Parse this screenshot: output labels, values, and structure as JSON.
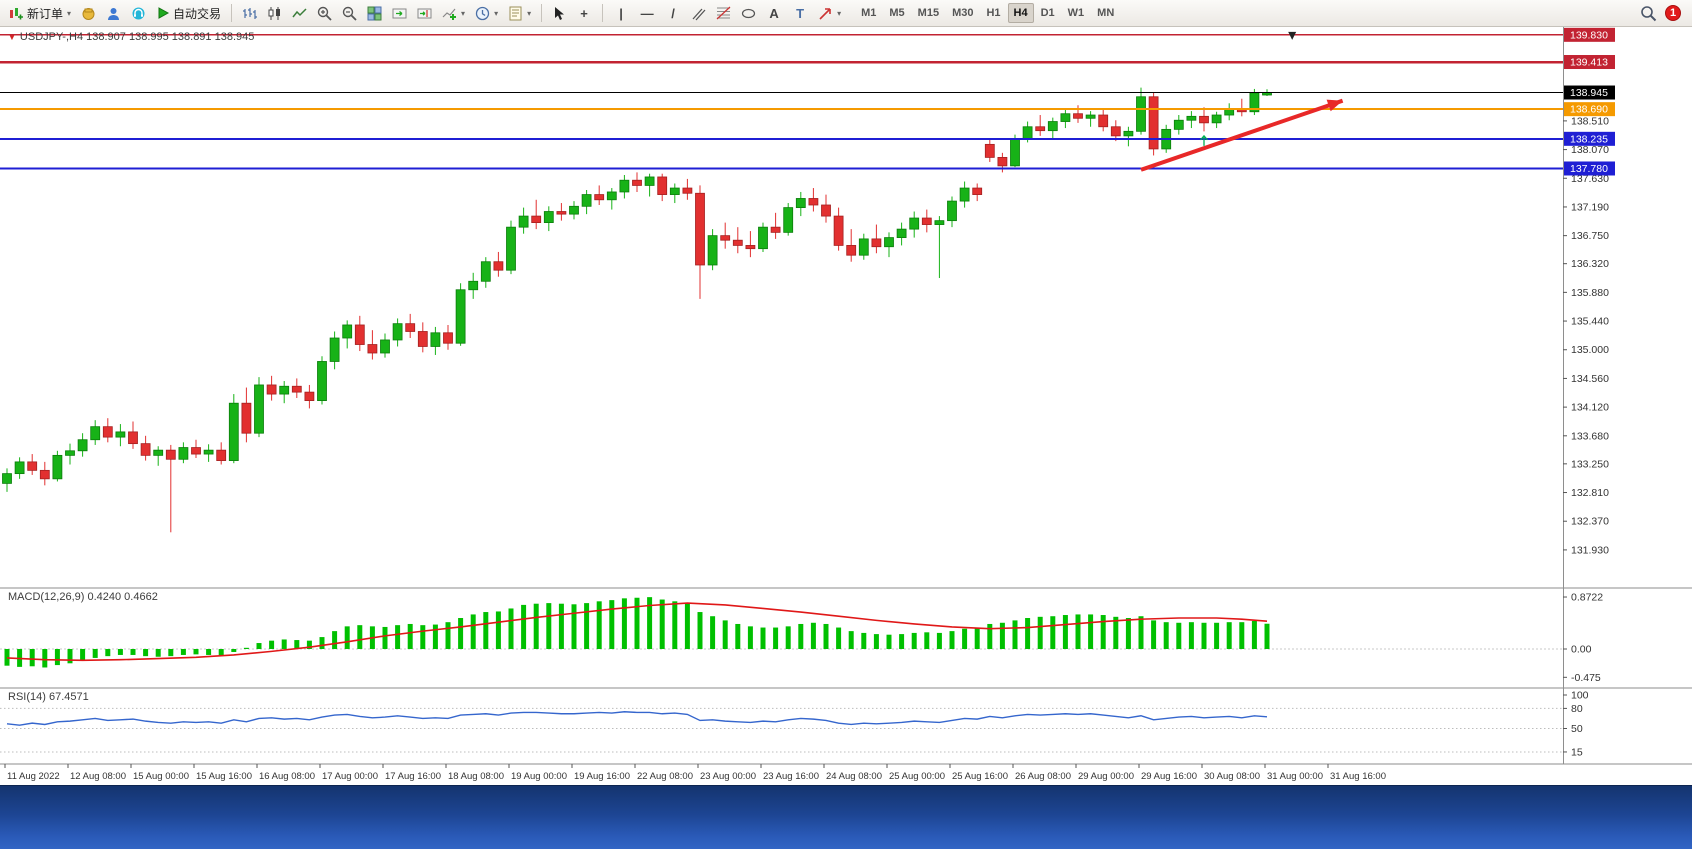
{
  "toolbar": {
    "new_order_label": "新订单",
    "autotrade_label": "自动交易",
    "timeframes": [
      "M1",
      "M5",
      "M15",
      "M30",
      "H1",
      "H4",
      "D1",
      "W1",
      "MN"
    ],
    "active_timeframe": "H4",
    "notification_count": "1",
    "icons": {
      "dropdown": "▾",
      "crosshair": "+",
      "vline": "|",
      "hline": "—",
      "trendline": "/",
      "text": "A",
      "label": "T"
    }
  },
  "chart": {
    "symbol_header": "USDJPY-,H4 138.907 138.995 138.891 138.945",
    "macd_label": "MACD(12,26,9) 0.4240 0.4662",
    "rsi_label": "RSI(14) 67.4571"
  },
  "chart_data": [
    {
      "type": "candlestick",
      "symbol": "USDJPY-",
      "timeframe": "H4",
      "open": 138.907,
      "high": 138.995,
      "low": 138.891,
      "close": 138.945,
      "ylim": [
        131.93,
        139.95
      ],
      "up_color": "#17b217",
      "down_color": "#e23030",
      "up_border": "#0a7d0a",
      "down_border": "#a32020",
      "price_ticks": [
        "138.510",
        "138.070",
        "137.630",
        "137.190",
        "136.750",
        "136.320",
        "135.880",
        "135.440",
        "135.000",
        "134.560",
        "134.120",
        "133.680",
        "133.250",
        "132.810",
        "132.370",
        "131.930"
      ],
      "hlines": [
        {
          "price": 139.83,
          "label": "139.830",
          "color": "#c22332",
          "width": 1.2
        },
        {
          "price": 139.413,
          "label": "139.413",
          "color": "#c22332",
          "width": 2.5
        },
        {
          "price": 138.945,
          "label": "138.945",
          "color": "#000000",
          "width": 1.2
        },
        {
          "price": 138.69,
          "label": "138.690",
          "color": "#f59a00",
          "width": 2
        },
        {
          "price": 138.235,
          "label": "138.235",
          "color": "#1f1fd4",
          "width": 2
        },
        {
          "price": 137.78,
          "label": "137.780",
          "color": "#1f1fd4",
          "width": 2
        }
      ],
      "arrow": {
        "from": {
          "index": 90,
          "price": 137.76
        },
        "to": {
          "index": 106,
          "price": 138.82
        },
        "color": "#e82828"
      },
      "buy_marker": {
        "index": 95,
        "price": 138.28,
        "color": "#00b050"
      },
      "top_marker": {
        "index": 102,
        "price": 139.83
      },
      "time_labels": [
        "11 Aug 2022",
        "12 Aug 08:00",
        "15 Aug 00:00",
        "15 Aug 16:00",
        "16 Aug 08:00",
        "17 Aug 00:00",
        "17 Aug 16:00",
        "18 Aug 08:00",
        "19 Aug 00:00",
        "19 Aug 16:00",
        "22 Aug 08:00",
        "23 Aug 00:00",
        "23 Aug 16:00",
        "24 Aug 08:00",
        "25 Aug 00:00",
        "25 Aug 16:00",
        "26 Aug 08:00",
        "29 Aug 00:00",
        "29 Aug 16:00",
        "30 Aug 08:00",
        "31 Aug 00:00",
        "31 Aug 16:00"
      ],
      "ohlc": [
        [
          132.95,
          133.18,
          132.82,
          133.1
        ],
        [
          133.1,
          133.35,
          133.02,
          133.28
        ],
        [
          133.28,
          133.4,
          133.08,
          133.15
        ],
        [
          133.15,
          133.28,
          132.92,
          133.02
        ],
        [
          133.02,
          133.45,
          132.98,
          133.38
        ],
        [
          133.38,
          133.56,
          133.24,
          133.45
        ],
        [
          133.45,
          133.72,
          133.36,
          133.62
        ],
        [
          133.62,
          133.92,
          133.54,
          133.82
        ],
        [
          133.82,
          133.95,
          133.58,
          133.66
        ],
        [
          133.66,
          133.86,
          133.52,
          133.74
        ],
        [
          133.74,
          133.9,
          133.48,
          133.56
        ],
        [
          133.56,
          133.68,
          133.3,
          133.38
        ],
        [
          133.38,
          133.52,
          133.22,
          133.46
        ],
        [
          133.46,
          133.54,
          132.2,
          133.32
        ],
        [
          133.32,
          133.58,
          133.26,
          133.5
        ],
        [
          133.5,
          133.62,
          133.34,
          133.4
        ],
        [
          133.4,
          133.55,
          133.28,
          133.46
        ],
        [
          133.46,
          133.58,
          133.24,
          133.3
        ],
        [
          133.3,
          134.32,
          133.26,
          134.18
        ],
        [
          134.18,
          134.42,
          133.58,
          133.72
        ],
        [
          133.72,
          134.58,
          133.66,
          134.46
        ],
        [
          134.46,
          134.6,
          134.22,
          134.32
        ],
        [
          134.32,
          134.52,
          134.18,
          134.44
        ],
        [
          134.44,
          134.56,
          134.26,
          134.35
        ],
        [
          134.35,
          134.46,
          134.1,
          134.22
        ],
        [
          134.22,
          134.9,
          134.16,
          134.82
        ],
        [
          134.82,
          135.28,
          134.7,
          135.18
        ],
        [
          135.18,
          135.45,
          135.02,
          135.38
        ],
        [
          135.38,
          135.52,
          134.98,
          135.08
        ],
        [
          135.08,
          135.3,
          134.85,
          134.95
        ],
        [
          134.95,
          135.25,
          134.88,
          135.15
        ],
        [
          135.15,
          135.48,
          135.05,
          135.4
        ],
        [
          135.4,
          135.55,
          135.18,
          135.28
        ],
        [
          135.28,
          135.42,
          134.96,
          135.05
        ],
        [
          135.05,
          135.35,
          134.92,
          135.26
        ],
        [
          135.26,
          135.38,
          135.0,
          135.1
        ],
        [
          135.1,
          136.02,
          135.06,
          135.92
        ],
        [
          135.92,
          136.18,
          135.78,
          136.05
        ],
        [
          136.05,
          136.42,
          135.95,
          136.35
        ],
        [
          136.35,
          136.5,
          136.12,
          136.22
        ],
        [
          136.22,
          136.98,
          136.16,
          136.88
        ],
        [
          136.88,
          137.18,
          136.78,
          137.05
        ],
        [
          137.05,
          137.3,
          136.85,
          136.95
        ],
        [
          136.95,
          137.2,
          136.82,
          137.12
        ],
        [
          137.12,
          137.25,
          136.98,
          137.08
        ],
        [
          137.08,
          137.28,
          137.0,
          137.2
        ],
        [
          137.2,
          137.45,
          137.08,
          137.38
        ],
        [
          137.38,
          137.52,
          137.22,
          137.3
        ],
        [
          137.3,
          137.48,
          137.15,
          137.42
        ],
        [
          137.42,
          137.68,
          137.32,
          137.6
        ],
        [
          137.6,
          137.72,
          137.42,
          137.52
        ],
        [
          137.52,
          137.7,
          137.35,
          137.65
        ],
        [
          137.65,
          137.7,
          137.28,
          137.38
        ],
        [
          137.38,
          137.55,
          137.25,
          137.48
        ],
        [
          137.48,
          137.62,
          137.3,
          137.4
        ],
        [
          137.4,
          137.52,
          135.78,
          136.3
        ],
        [
          136.3,
          136.85,
          136.22,
          136.75
        ],
        [
          136.75,
          136.95,
          136.55,
          136.68
        ],
        [
          136.68,
          136.88,
          136.48,
          136.6
        ],
        [
          136.6,
          136.82,
          136.42,
          136.55
        ],
        [
          136.55,
          136.95,
          136.5,
          136.88
        ],
        [
          136.88,
          137.1,
          136.7,
          136.8
        ],
        [
          136.8,
          137.25,
          136.75,
          137.18
        ],
        [
          137.18,
          137.42,
          137.05,
          137.32
        ],
        [
          137.32,
          137.48,
          137.12,
          137.22
        ],
        [
          137.22,
          137.38,
          136.95,
          137.05
        ],
        [
          137.05,
          137.18,
          136.52,
          136.6
        ],
        [
          136.6,
          136.85,
          136.35,
          136.45
        ],
        [
          136.45,
          136.78,
          136.38,
          136.7
        ],
        [
          136.7,
          136.92,
          136.48,
          136.58
        ],
        [
          136.58,
          136.8,
          136.42,
          136.72
        ],
        [
          136.72,
          136.95,
          136.6,
          136.85
        ],
        [
          136.85,
          137.12,
          136.72,
          137.02
        ],
        [
          137.02,
          137.15,
          136.8,
          136.92
        ],
        [
          136.92,
          137.05,
          136.1,
          136.98
        ],
        [
          136.98,
          137.35,
          136.88,
          137.28
        ],
        [
          137.28,
          137.58,
          137.18,
          137.48
        ],
        [
          137.48,
          137.55,
          137.28,
          137.38
        ],
        [
          138.15,
          138.22,
          137.88,
          137.95
        ],
        [
          137.95,
          138.02,
          137.72,
          137.82
        ],
        [
          137.82,
          138.3,
          137.8,
          138.24
        ],
        [
          138.24,
          138.5,
          138.18,
          138.42
        ],
        [
          138.42,
          138.6,
          138.28,
          138.36
        ],
        [
          138.36,
          138.56,
          138.24,
          138.5
        ],
        [
          138.5,
          138.7,
          138.4,
          138.62
        ],
        [
          138.62,
          138.75,
          138.48,
          138.55
        ],
        [
          138.55,
          138.66,
          138.42,
          138.6
        ],
        [
          138.6,
          138.68,
          138.35,
          138.42
        ],
        [
          138.42,
          138.52,
          138.2,
          138.28
        ],
        [
          138.28,
          138.42,
          138.12,
          138.35
        ],
        [
          138.35,
          139.02,
          138.3,
          138.88
        ],
        [
          138.88,
          138.95,
          137.98,
          138.08
        ],
        [
          138.08,
          138.45,
          138.02,
          138.38
        ],
        [
          138.38,
          138.6,
          138.3,
          138.52
        ],
        [
          138.52,
          138.66,
          138.4,
          138.58
        ],
        [
          138.58,
          138.72,
          138.35,
          138.48
        ],
        [
          138.48,
          138.65,
          138.4,
          138.6
        ],
        [
          138.6,
          138.78,
          138.52,
          138.7
        ],
        [
          138.7,
          138.85,
          138.58,
          138.65
        ],
        [
          138.65,
          139.0,
          138.6,
          138.94
        ],
        [
          138.907,
          138.995,
          138.891,
          138.945
        ]
      ]
    },
    {
      "type": "bar",
      "name": "MACD(12,26,9)",
      "value_main": 0.424,
      "value_signal": 0.4662,
      "bar_color": "#00c000",
      "signal_color": "#e01818",
      "ticks": [
        {
          "label": "0.8722",
          "value": 0.8722
        },
        {
          "label": "0.00",
          "value": 0
        },
        {
          "label": "-0.475",
          "value": -0.475
        }
      ],
      "values": [
        -0.28,
        -0.3,
        -0.29,
        -0.31,
        -0.27,
        -0.24,
        -0.2,
        -0.15,
        -0.12,
        -0.1,
        -0.1,
        -0.12,
        -0.13,
        -0.12,
        -0.1,
        -0.09,
        -0.1,
        -0.11,
        -0.05,
        0.02,
        0.1,
        0.14,
        0.16,
        0.15,
        0.14,
        0.2,
        0.3,
        0.38,
        0.4,
        0.38,
        0.37,
        0.4,
        0.42,
        0.4,
        0.41,
        0.45,
        0.52,
        0.58,
        0.62,
        0.63,
        0.68,
        0.74,
        0.76,
        0.77,
        0.76,
        0.75,
        0.77,
        0.8,
        0.82,
        0.85,
        0.86,
        0.87,
        0.83,
        0.8,
        0.76,
        0.62,
        0.55,
        0.48,
        0.42,
        0.38,
        0.36,
        0.36,
        0.38,
        0.42,
        0.44,
        0.42,
        0.36,
        0.3,
        0.27,
        0.25,
        0.24,
        0.25,
        0.27,
        0.28,
        0.27,
        0.3,
        0.34,
        0.36,
        0.42,
        0.44,
        0.48,
        0.52,
        0.54,
        0.55,
        0.57,
        0.58,
        0.58,
        0.57,
        0.54,
        0.52,
        0.55,
        0.48,
        0.45,
        0.44,
        0.45,
        0.44,
        0.44,
        0.45,
        0.45,
        0.47,
        0.424
      ],
      "signal_points": [
        [
          0,
          -0.15
        ],
        [
          3,
          -0.18
        ],
        [
          6,
          -0.19
        ],
        [
          9,
          -0.18
        ],
        [
          12,
          -0.16
        ],
        [
          15,
          -0.14
        ],
        [
          18,
          -0.1
        ],
        [
          21,
          -0.04
        ],
        [
          24,
          0.03
        ],
        [
          27,
          0.12
        ],
        [
          30,
          0.22
        ],
        [
          33,
          0.3
        ],
        [
          36,
          0.37
        ],
        [
          39,
          0.45
        ],
        [
          42,
          0.53
        ],
        [
          45,
          0.6
        ],
        [
          48,
          0.67
        ],
        [
          51,
          0.73
        ],
        [
          54,
          0.77
        ],
        [
          57,
          0.74
        ],
        [
          60,
          0.68
        ],
        [
          63,
          0.62
        ],
        [
          66,
          0.55
        ],
        [
          69,
          0.48
        ],
        [
          72,
          0.42
        ],
        [
          75,
          0.37
        ],
        [
          78,
          0.34
        ],
        [
          81,
          0.36
        ],
        [
          84,
          0.41
        ],
        [
          87,
          0.46
        ],
        [
          90,
          0.5
        ],
        [
          93,
          0.52
        ],
        [
          96,
          0.52
        ],
        [
          98,
          0.5
        ],
        [
          100,
          0.4662
        ]
      ]
    },
    {
      "type": "line",
      "name": "RSI(14)",
      "value": 67.4571,
      "line_color": "#3566cd",
      "levels": [
        80,
        50,
        15
      ],
      "ticks": [
        {
          "label": "100",
          "value": 100
        },
        {
          "label": "80",
          "value": 80
        },
        {
          "label": "50",
          "value": 50
        },
        {
          "label": "15",
          "value": 15
        }
      ],
      "values": [
        57,
        55,
        58,
        56,
        60,
        61,
        63,
        65,
        62,
        63,
        64,
        61,
        59,
        58,
        60,
        59,
        60,
        58,
        63,
        60,
        65,
        66,
        64,
        65,
        63,
        67,
        70,
        71,
        68,
        66,
        67,
        69,
        67,
        65,
        66,
        65,
        70,
        71,
        72,
        70,
        73,
        74,
        74,
        73,
        72,
        72,
        73,
        74,
        73,
        75,
        74,
        74,
        72,
        73,
        71,
        62,
        63,
        61,
        60,
        59,
        61,
        60,
        63,
        65,
        64,
        62,
        58,
        56,
        58,
        57,
        58,
        59,
        61,
        60,
        59,
        62,
        65,
        64,
        68,
        66,
        69,
        71,
        70,
        71,
        72,
        71,
        72,
        70,
        68,
        66,
        69,
        63,
        65,
        67,
        68,
        66,
        67,
        68,
        66,
        69,
        67.4571
      ]
    }
  ]
}
